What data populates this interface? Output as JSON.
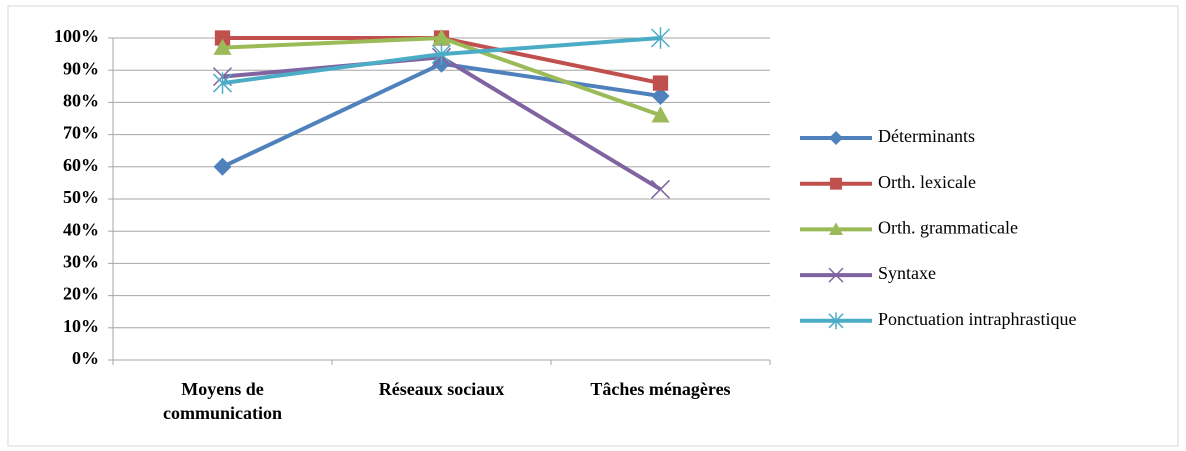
{
  "chart_data": {
    "type": "line",
    "categories": [
      "Moyens de communication",
      "Réseaux sociaux",
      "Tâches ménagères"
    ],
    "series": [
      {
        "name": "Déterminants",
        "color": "#4f81bd",
        "marker": "diamond",
        "values": [
          60,
          92,
          82
        ]
      },
      {
        "name": "Orth. lexicale",
        "color": "#c0504d",
        "marker": "square",
        "values": [
          100,
          100,
          86
        ]
      },
      {
        "name": "Orth. grammaticale",
        "color": "#9bbb59",
        "marker": "triangle",
        "values": [
          97,
          100,
          76
        ]
      },
      {
        "name": "Syntaxe",
        "color": "#8064a2",
        "marker": "x",
        "values": [
          88,
          94,
          53
        ]
      },
      {
        "name": "Ponctuation intraphrastique",
        "color": "#4bacc6",
        "marker": "asterisk",
        "values": [
          86,
          95,
          100
        ]
      }
    ],
    "ylim": [
      0,
      100
    ],
    "yticks": [
      {
        "value": 0,
        "label": "0%"
      },
      {
        "value": 10,
        "label": "10%"
      },
      {
        "value": 20,
        "label": "20%"
      },
      {
        "value": 30,
        "label": "30%"
      },
      {
        "value": 40,
        "label": "40%"
      },
      {
        "value": 50,
        "label": "50%"
      },
      {
        "value": 60,
        "label": "60%"
      },
      {
        "value": 70,
        "label": "70%"
      },
      {
        "value": 80,
        "label": "80%"
      },
      {
        "value": 90,
        "label": "90%"
      },
      {
        "value": 100,
        "label": "100%"
      }
    ],
    "grid": true,
    "legend": "right"
  }
}
